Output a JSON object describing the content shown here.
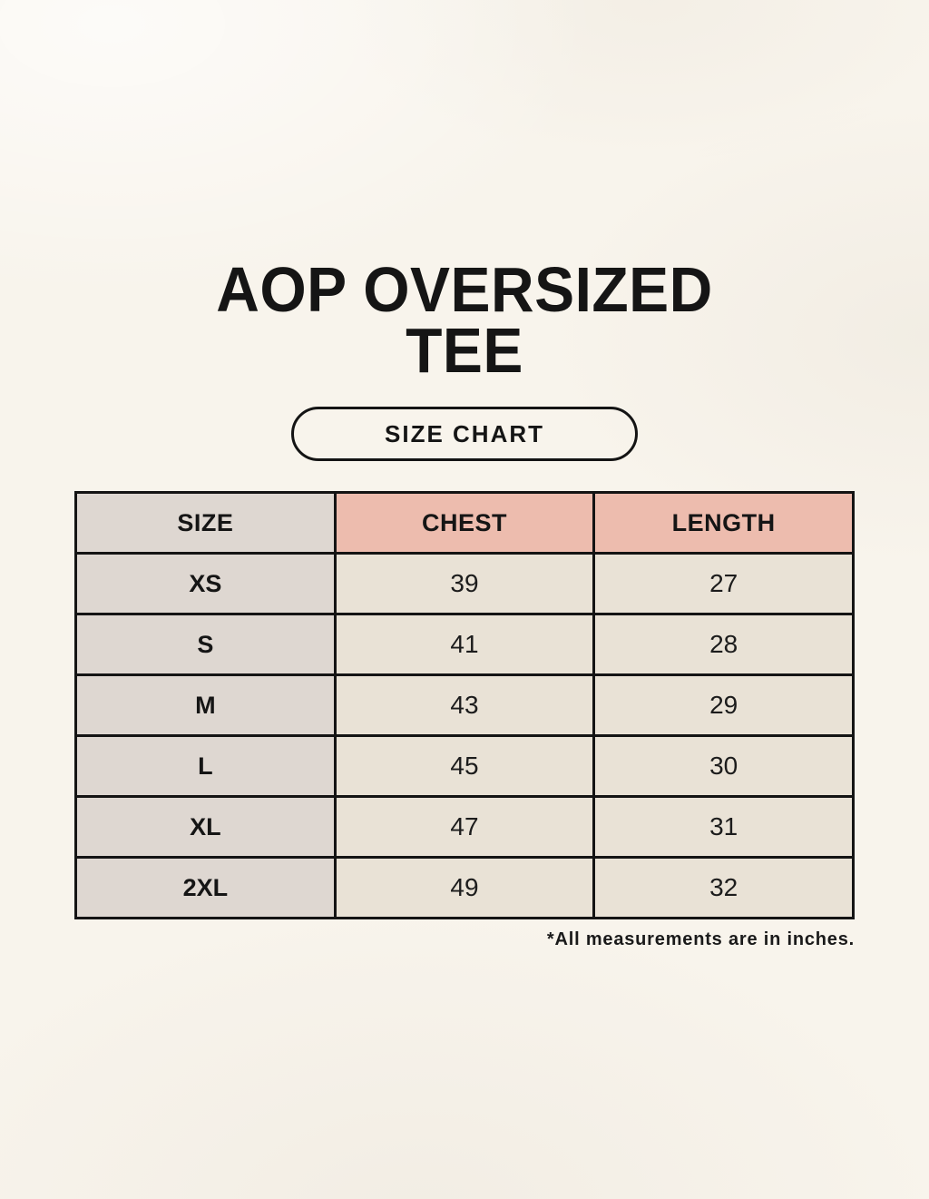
{
  "title": {
    "line1": "AOP OVERSIZED",
    "line2": "TEE"
  },
  "badge_label": "SIZE CHART",
  "footnote": "*All measurements are in inches.",
  "colors": {
    "background": "#f8f4ec",
    "header_accent": "#edbcae",
    "label_column": "#ded7d1",
    "cell": "#e9e2d6",
    "border": "#141414",
    "text": "#151515"
  },
  "chart_data": {
    "type": "table",
    "title": "AOP OVERSIZED TEE",
    "subtitle": "SIZE CHART",
    "columns": [
      "SIZE",
      "CHEST",
      "LENGTH"
    ],
    "rows": [
      [
        "XS",
        39,
        27
      ],
      [
        "S",
        41,
        28
      ],
      [
        "M",
        43,
        29
      ],
      [
        "L",
        45,
        30
      ],
      [
        "XL",
        47,
        31
      ],
      [
        "2XL",
        49,
        32
      ]
    ],
    "units": "inches"
  }
}
